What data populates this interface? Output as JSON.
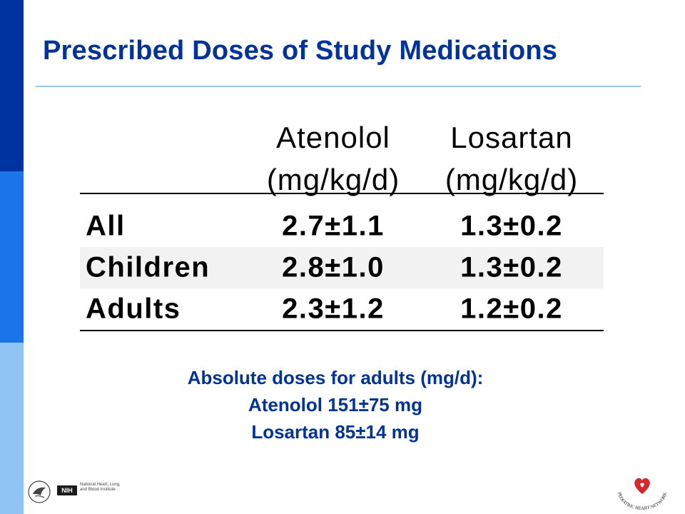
{
  "slide": {
    "title": "Prescribed Doses of Study Medications"
  },
  "table": {
    "columns": [
      {
        "name": "Atenolol",
        "unit": "(mg/kg/d)"
      },
      {
        "name": "Losartan",
        "unit": "(mg/kg/d)"
      }
    ],
    "rows": [
      {
        "label": "All",
        "atenolol": "2.7±1.1",
        "losartan": "1.3±0.2"
      },
      {
        "label": "Children",
        "atenolol": "2.8±1.0",
        "losartan": "1.3±0.2"
      },
      {
        "label": "Adults",
        "atenolol": "2.3±1.2",
        "losartan": "1.2±0.2"
      }
    ]
  },
  "notes": {
    "heading": "Absolute doses for adults (mg/d):",
    "atenolol": "Atenolol 151±75 mg",
    "losartan": "Losartan 85±14 mg"
  },
  "footer": {
    "nih_badge": "NIH",
    "nih_lines": [
      "National Heart, Lung,",
      "and Blood Institute"
    ],
    "network_name": "PEDIATRIC HEART NETWORK"
  },
  "colors": {
    "title": "#003399",
    "sidebar_dark": "#0033a0",
    "sidebar_mid": "#1b74e8",
    "sidebar_light": "#8fc4f5",
    "logo_heart": "#d8282f"
  }
}
